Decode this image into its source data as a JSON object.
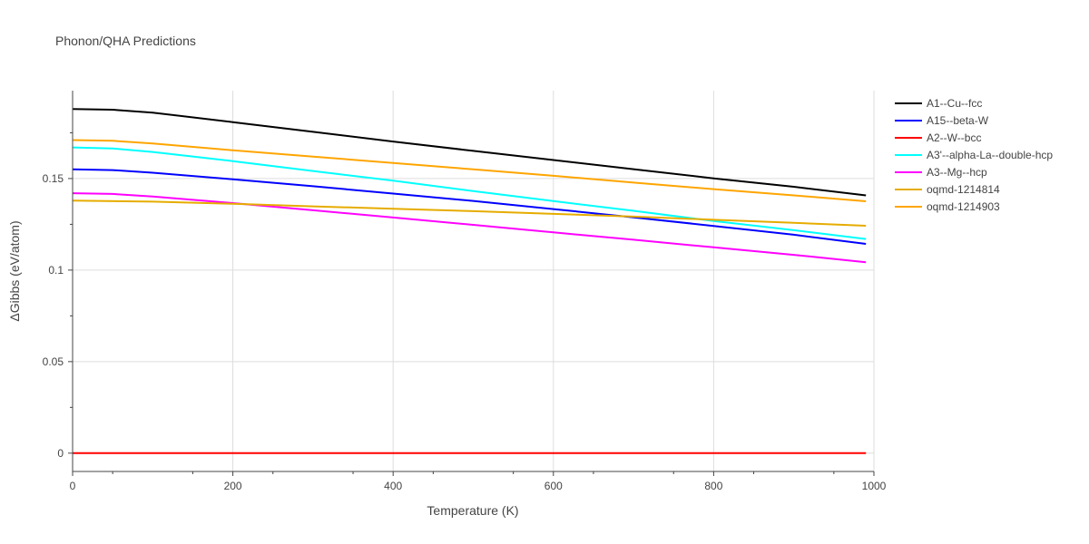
{
  "chart_data": {
    "type": "line",
    "title": "Phonon/QHA Predictions",
    "xlabel": "Temperature (K)",
    "ylabel": "ΔGibbs (eV/atom)",
    "xlim": [
      0,
      1000
    ],
    "ylim": [
      -0.01,
      0.198
    ],
    "x_ticks": [
      0,
      200,
      400,
      600,
      800,
      1000
    ],
    "x_tick_labels": [
      "0",
      "200",
      "400",
      "600",
      "800",
      "1000"
    ],
    "y_ticks": [
      0,
      0.05,
      0.1,
      0.15
    ],
    "y_tick_labels": [
      "0",
      "0.05",
      "0.1",
      "0.15"
    ],
    "grid": true,
    "legend_position": "right",
    "series": [
      {
        "name": "A1--Cu--fcc",
        "color": "#000000",
        "x": [
          0,
          50,
          100,
          200,
          300,
          400,
          500,
          600,
          700,
          800,
          900,
          990
        ],
        "y": [
          0.188,
          0.1876,
          0.186,
          0.1808,
          0.1755,
          0.1702,
          0.1651,
          0.1601,
          0.1551,
          0.1501,
          0.1455,
          0.1408
        ]
      },
      {
        "name": "A15--beta-W",
        "color": "#0000ff",
        "x": [
          0,
          50,
          100,
          200,
          300,
          400,
          500,
          600,
          700,
          800,
          900,
          990
        ],
        "y": [
          0.155,
          0.1546,
          0.1532,
          0.1496,
          0.1458,
          0.1418,
          0.1378,
          0.1333,
          0.1288,
          0.1241,
          0.1193,
          0.1143
        ]
      },
      {
        "name": "A2--W--bcc",
        "color": "#ff0000",
        "x": [
          0,
          200,
          400,
          600,
          800,
          990
        ],
        "y": [
          0,
          0,
          0,
          0,
          0,
          0
        ]
      },
      {
        "name": "A3'--alpha-La--double-hcp",
        "color": "#00ffff",
        "x": [
          0,
          50,
          100,
          200,
          300,
          400,
          500,
          600,
          700,
          800,
          900,
          990
        ],
        "y": [
          0.167,
          0.1664,
          0.1645,
          0.1595,
          0.1541,
          0.1488,
          0.1432,
          0.1377,
          0.1324,
          0.1268,
          0.1218,
          0.117
        ]
      },
      {
        "name": "A3--Mg--hcp",
        "color": "#ff00ff",
        "x": [
          0,
          50,
          100,
          200,
          300,
          400,
          500,
          600,
          700,
          800,
          900,
          990
        ],
        "y": [
          0.142,
          0.1416,
          0.1402,
          0.1366,
          0.1327,
          0.1287,
          0.1247,
          0.1206,
          0.1166,
          0.1124,
          0.1083,
          0.1043
        ]
      },
      {
        "name": "oqmd-1214814",
        "color": "#e6ac00",
        "x": [
          0,
          100,
          200,
          300,
          400,
          500,
          600,
          700,
          800,
          900,
          990
        ],
        "y": [
          0.138,
          0.1374,
          0.1362,
          0.1348,
          0.1335,
          0.1322,
          0.1307,
          0.1292,
          0.1275,
          0.1258,
          0.1242
        ]
      },
      {
        "name": "oqmd-1214903",
        "color": "#ffa500",
        "x": [
          0,
          50,
          100,
          200,
          300,
          400,
          500,
          600,
          700,
          800,
          900,
          990
        ],
        "y": [
          0.171,
          0.1706,
          0.1692,
          0.1654,
          0.162,
          0.1585,
          0.155,
          0.1515,
          0.1478,
          0.1442,
          0.1408,
          0.1376
        ]
      }
    ]
  }
}
